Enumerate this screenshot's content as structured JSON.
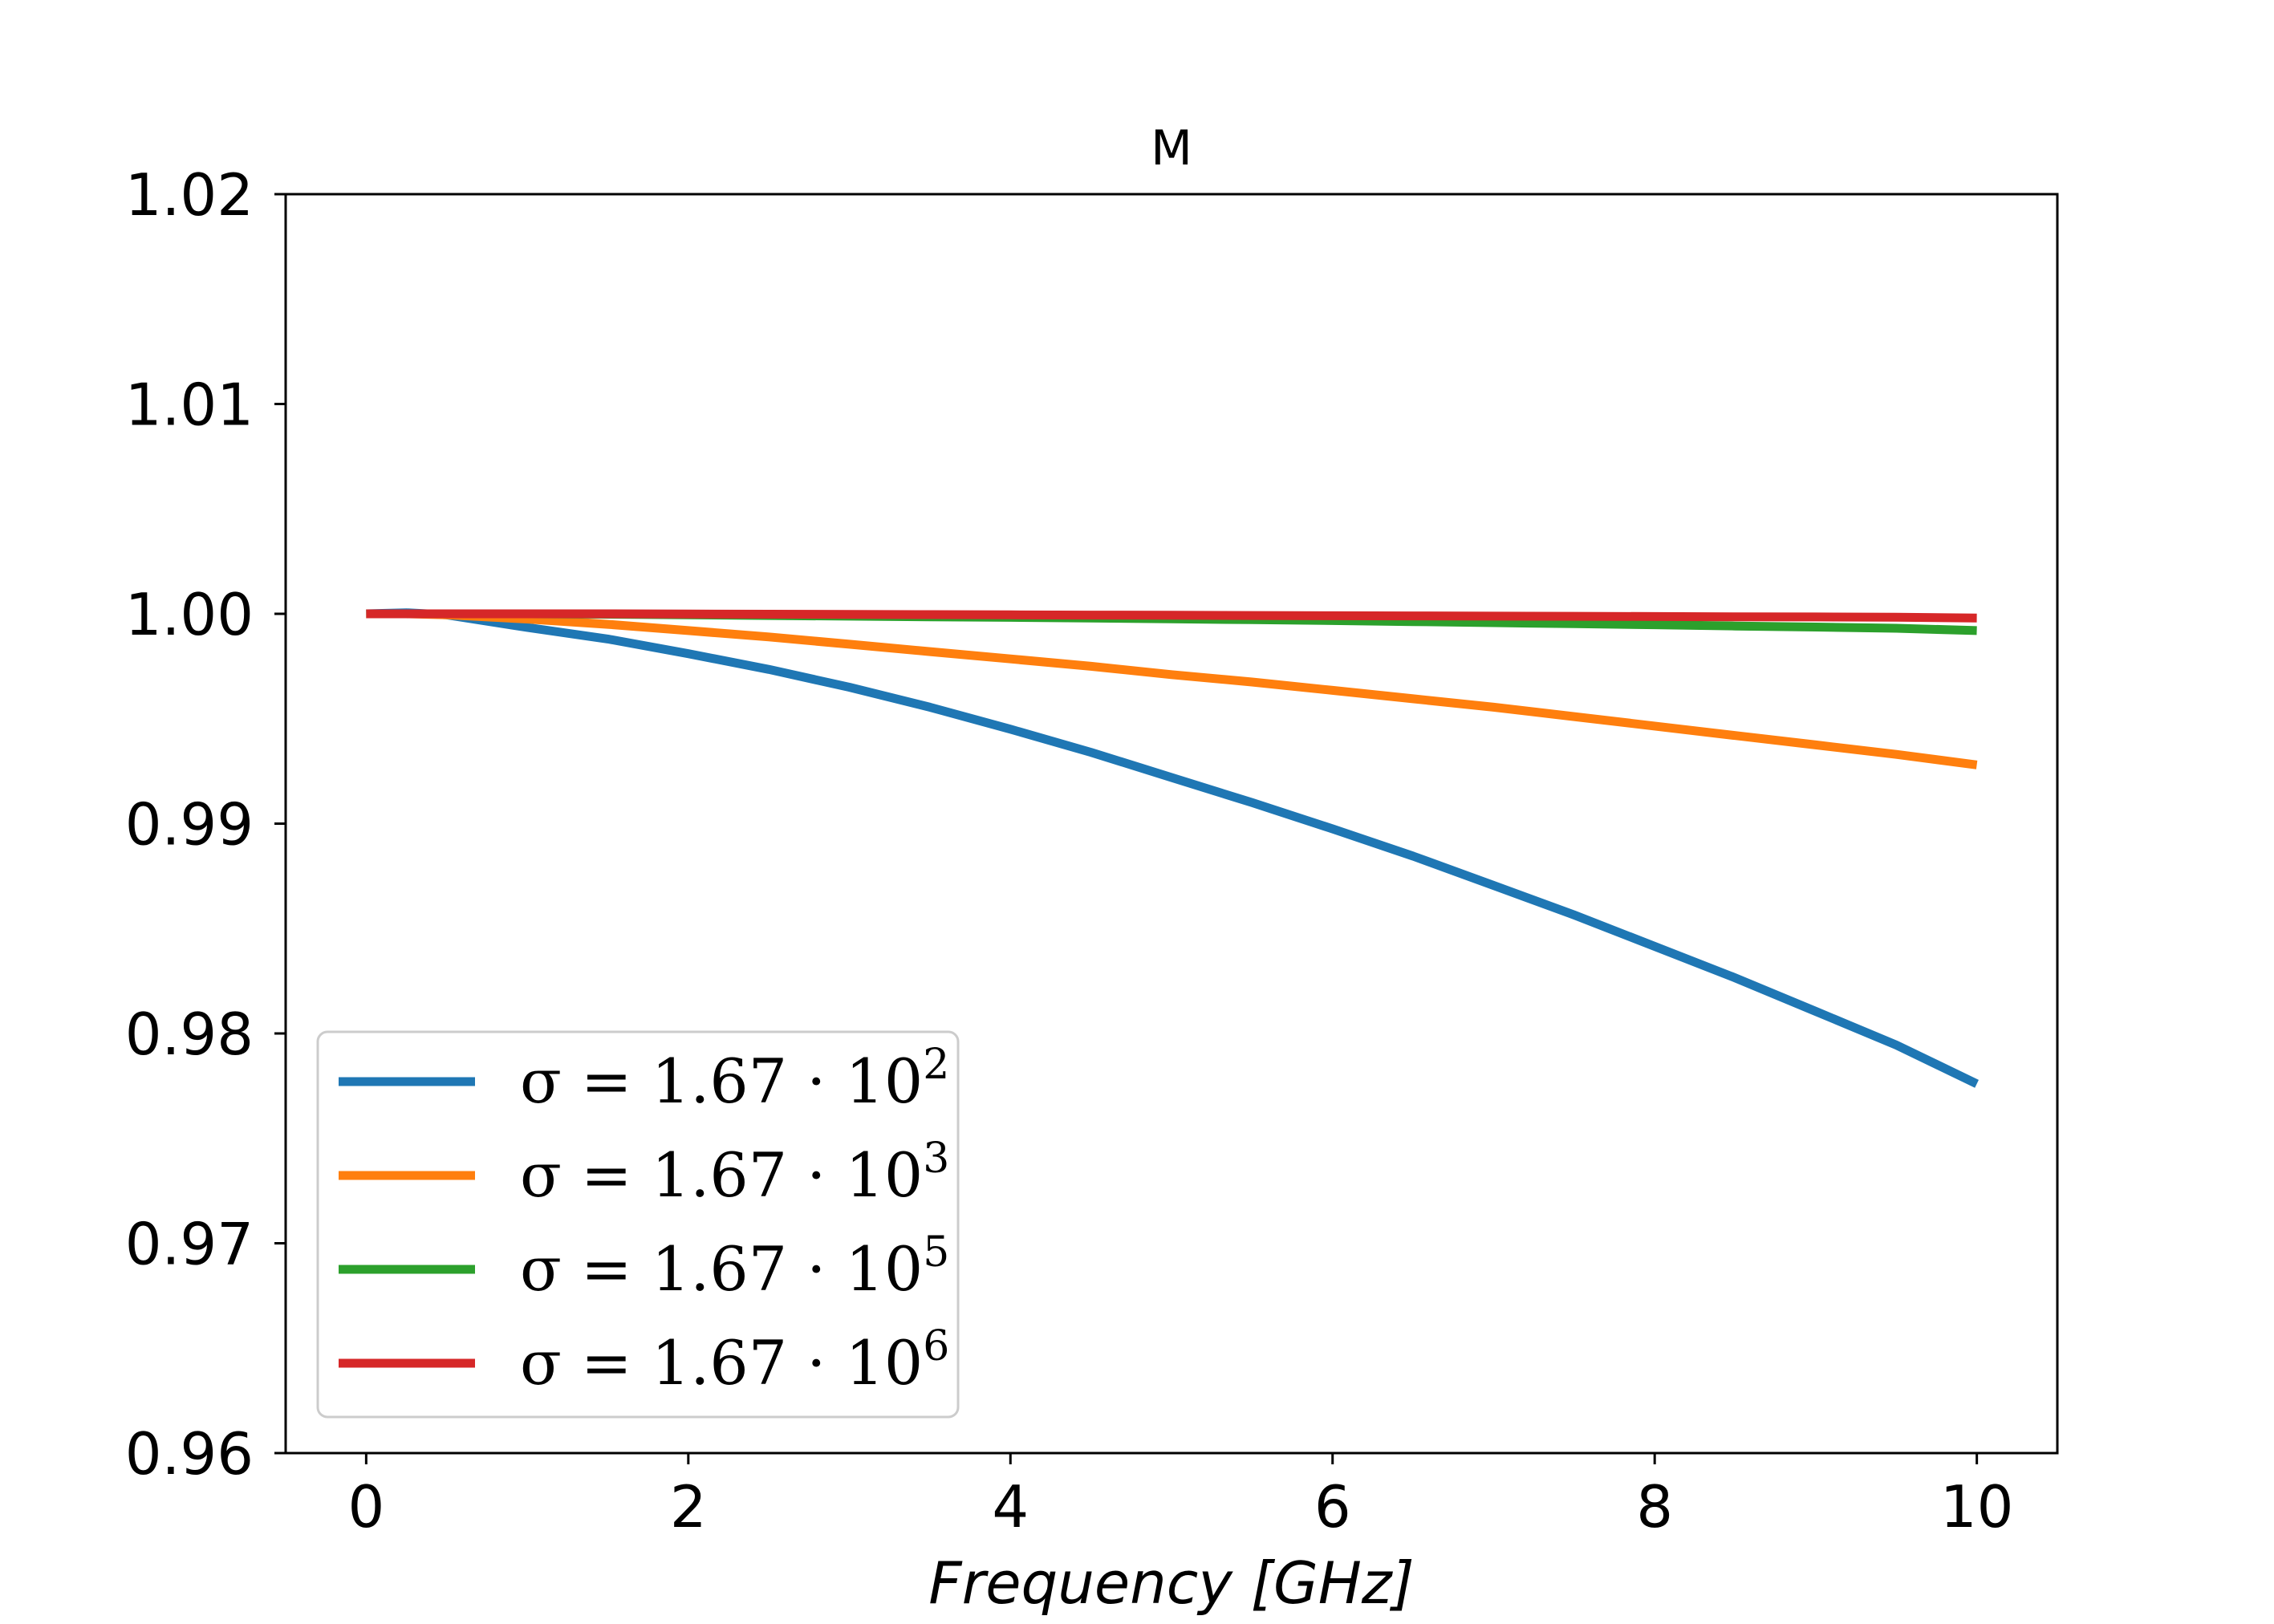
{
  "chart_data": {
    "type": "line",
    "title": "M",
    "xlabel": "Frequency [GHz]",
    "ylabel": "",
    "xlim": [
      -0.5,
      10.5
    ],
    "ylim": [
      0.96,
      1.02
    ],
    "xticks": [
      0,
      2,
      4,
      6,
      8,
      10
    ],
    "xtick_labels": [
      "0",
      "2",
      "4",
      "6",
      "8",
      "10"
    ],
    "yticks": [
      0.96,
      0.97,
      0.98,
      0.99,
      1.0,
      1.01,
      1.02
    ],
    "ytick_labels": [
      "0.96",
      "0.97",
      "0.98",
      "0.99",
      "1.00",
      "1.01",
      "1.02"
    ],
    "grid": false,
    "legend_position": "lower-left",
    "x": [
      0,
      0.25,
      0.5,
      1,
      1.5,
      2,
      2.5,
      3,
      3.5,
      4,
      4.5,
      5,
      5.5,
      6,
      6.5,
      7,
      7.5,
      8,
      8.5,
      9,
      9.5,
      10
    ],
    "series": [
      {
        "name": "σ = 1.67 · 10^2",
        "prefix": "σ = 1.67 · 10",
        "exponent": "2",
        "color": "#1f77b4",
        "values": [
          1.0,
          1.00005,
          0.99995,
          0.99935,
          0.9988,
          0.9981,
          0.99735,
          0.9965,
          0.99555,
          0.9945,
          0.9934,
          0.9922,
          0.991,
          0.98975,
          0.98845,
          0.98705,
          0.98565,
          0.98415,
          0.98265,
          0.98105,
          0.97945,
          0.9776
        ]
      },
      {
        "name": "σ = 1.67 · 10^3",
        "prefix": "σ = 1.67 · 10",
        "exponent": "3",
        "color": "#ff7f0e",
        "values": [
          1.0,
          1.0,
          0.99995,
          0.99975,
          0.9995,
          0.9992,
          0.9989,
          0.99855,
          0.9982,
          0.99785,
          0.9975,
          0.9971,
          0.99675,
          0.99635,
          0.99595,
          0.99555,
          0.9951,
          0.99465,
          0.9942,
          0.99375,
          0.9933,
          0.9928
        ]
      },
      {
        "name": "σ = 1.67 · 10^5",
        "prefix": "σ = 1.67 · 10",
        "exponent": "5",
        "color": "#2ca02c",
        "values": [
          1.0,
          1.0,
          1.0,
          1.0,
          0.99998,
          0.99995,
          0.99992,
          0.99989,
          0.99986,
          0.99983,
          0.9998,
          0.99976,
          0.99972,
          0.99968,
          0.99963,
          0.99958,
          0.99953,
          0.99948,
          0.99942,
          0.99937,
          0.99931,
          0.9992
        ]
      },
      {
        "name": "σ = 1.67 · 10^6",
        "prefix": "σ = 1.67 · 10",
        "exponent": "6",
        "color": "#d62728",
        "values": [
          1.0,
          1.0,
          1.0,
          1.0,
          1.0,
          0.99999,
          0.99998,
          0.99997,
          0.99996,
          0.99995,
          0.99994,
          0.99993,
          0.99992,
          0.99991,
          0.9999,
          0.99989,
          0.99988,
          0.99987,
          0.99986,
          0.99985,
          0.99984,
          0.9998
        ]
      }
    ]
  }
}
